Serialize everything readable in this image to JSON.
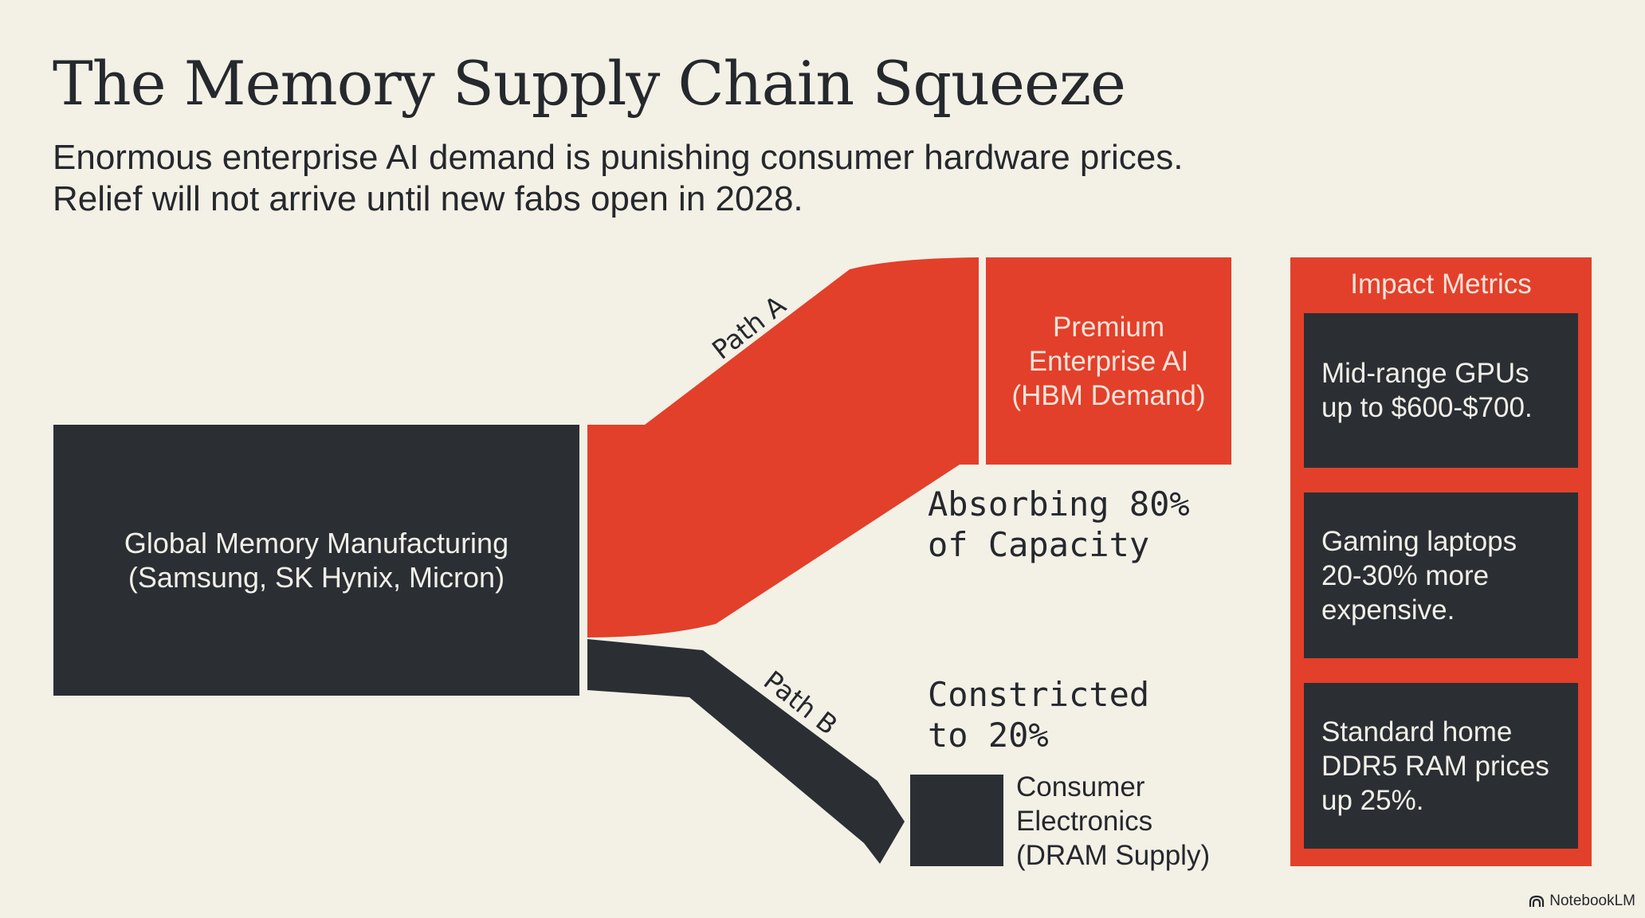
{
  "header": {
    "title": "The Memory Supply Chain Squeeze",
    "subtitle_line1": "Enormous enterprise AI demand is punishing consumer hardware prices.",
    "subtitle_line2": "Relief will not arrive until new fabs open in 2028."
  },
  "diagram": {
    "source": {
      "line1": "Global Memory Manufacturing",
      "line2": "(Samsung, SK Hynix, Micron)"
    },
    "path_a": {
      "label": "Path A",
      "share_percent": 80,
      "note_line1": "Absorbing 80%",
      "note_line2": "of Capacity",
      "target_line1": "Premium",
      "target_line2": "Enterprise AI",
      "target_line3": "(HBM Demand)"
    },
    "path_b": {
      "label": "Path B",
      "share_percent": 20,
      "note_line1": "Constricted",
      "note_line2": "to 20%",
      "target_line1": "Consumer",
      "target_line2": "Electronics",
      "target_line3": "(DRAM Supply)"
    }
  },
  "metrics": {
    "title": "Impact Metrics",
    "cards": [
      {
        "line1": "Mid-range GPUs",
        "line2": "up to $600-$700.",
        "line3": ""
      },
      {
        "line1": "Gaming laptops",
        "line2": "20-30% more",
        "line3": "expensive."
      },
      {
        "line1": "Standard home",
        "line2": "DDR5 RAM prices",
        "line3": "up 25%."
      }
    ]
  },
  "brand": {
    "name": "NotebookLM",
    "icon": "notebooklm-logo-icon"
  },
  "colors": {
    "background": "#f3f0e6",
    "accent_red": "#e2402a",
    "dark": "#2b2f34",
    "text": "#25282c"
  }
}
